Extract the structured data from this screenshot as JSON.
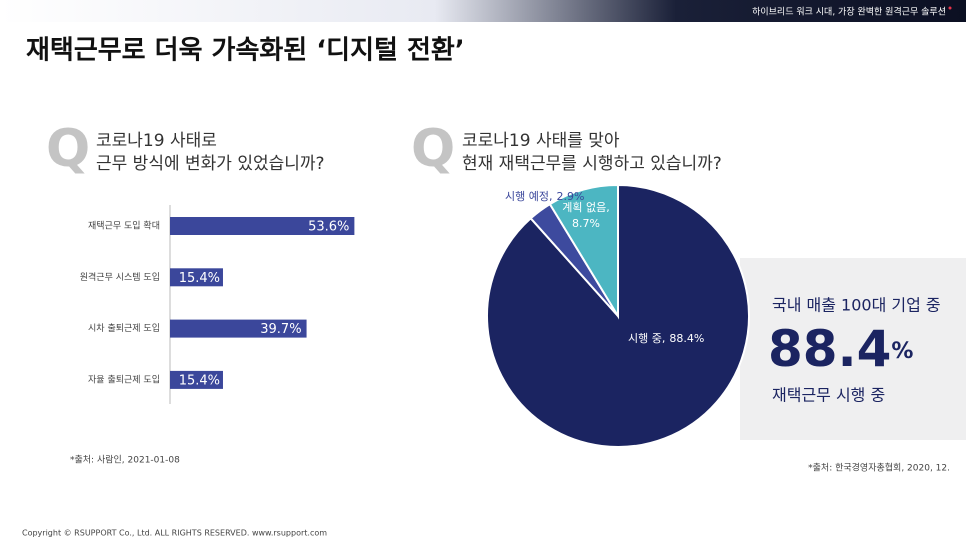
{
  "header": "하이브리드 워크 시대, 가장 완벽한 원격근무 솔루션",
  "title": "재택근무로 더욱 가속화된 ‘디지털 전환’",
  "questions": [
    {
      "icon": "Q",
      "lines": [
        "코로나19 사태로",
        "근무 방식에 변화가 있었습니까?"
      ]
    },
    {
      "icon": "Q",
      "lines": [
        "코로나19 사태를 맞아",
        "현재 재택근무를 시행하고 있습니까?"
      ]
    }
  ],
  "chart_data": [
    {
      "type": "hbar",
      "categories": [
        "재택근무 도입 확대",
        "원격근무 시스템 도입",
        "시차 출퇴근제 도입",
        "자율 출퇴근제 도입"
      ],
      "values": [
        53.6,
        15.4,
        39.7,
        15.4
      ],
      "value_labels": [
        "53.6%",
        "15.4%",
        "39.7%",
        "15.4%"
      ],
      "color": "#3b479b",
      "source": "*출처: 사람인, 2021-01-08"
    },
    {
      "type": "pie",
      "categories": [
        "시행 중,",
        "시행 예정,",
        "계획 없음,"
      ],
      "values": [
        88.4,
        2.9,
        8.7
      ],
      "value_labels": [
        "88.4%",
        "2.9%",
        "8.7%"
      ],
      "colors": [
        "#1b2461",
        "#3d4a9e",
        "#4cb6c2"
      ],
      "source": "*출처: 한국경영자총협회, 2020, 12."
    }
  ],
  "callout": {
    "line1": "국내 매출 100대 기업 중",
    "highlight": "88.4",
    "highlight_unit": "%",
    "line2": "재택근무 시행 중"
  },
  "footer": "Copyright © RSUPPORT Co., Ltd. ALL RIGHTS RESERVED. www.rsupport.com"
}
